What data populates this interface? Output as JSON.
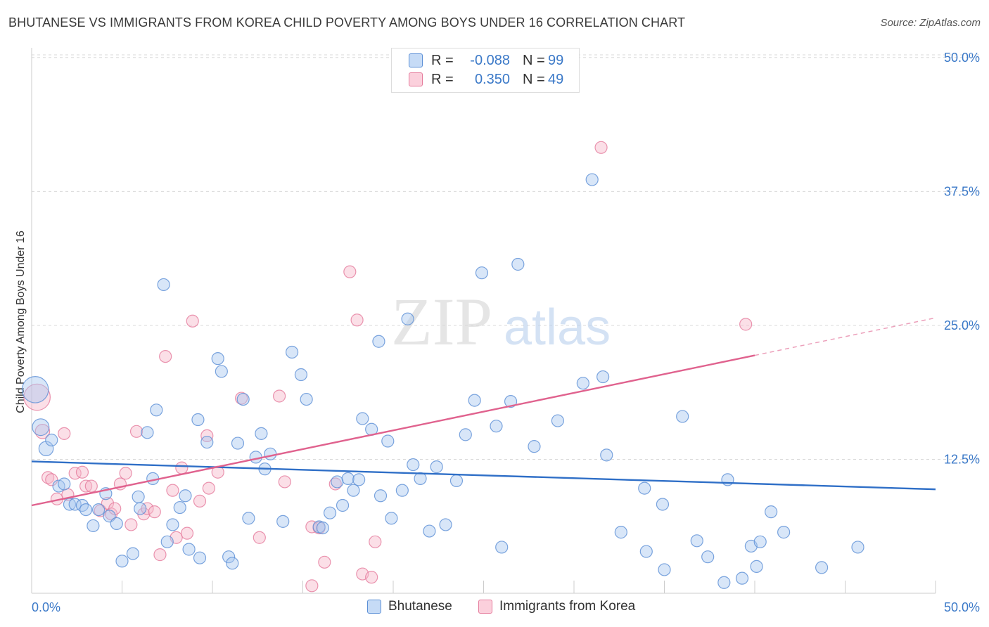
{
  "title": "BHUTANESE VS IMMIGRANTS FROM KOREA CHILD POVERTY AMONG BOYS UNDER 16 CORRELATION CHART",
  "source": "Source: ZipAtlas.com",
  "watermark": {
    "zip": "ZIP",
    "atlas": "atlas"
  },
  "colors": {
    "blue_fill": "#a9c8f0",
    "blue_stroke": "#5b8fd6",
    "blue_line": "#2f6fc7",
    "pink_fill": "#f6b8ca",
    "pink_stroke": "#e57b9c",
    "pink_line": "#e0628e",
    "axis_text": "#3b79c8",
    "grid": "#d9d9d9"
  },
  "legend_top": [
    {
      "swatch": "blue",
      "r_label": "R =",
      "r_value": "-0.088",
      "n_label": "N =",
      "n_value": "99"
    },
    {
      "swatch": "pink",
      "r_label": "R =",
      "r_value": "0.350",
      "n_label": "N =",
      "n_value": "49"
    }
  ],
  "legend_bottom": [
    {
      "swatch": "blue",
      "label": "Bhutanese"
    },
    {
      "swatch": "pink",
      "label": "Immigrants from Korea"
    }
  ],
  "chart_data": {
    "type": "scatter",
    "title": "BHUTANESE VS IMMIGRANTS FROM KOREA CHILD POVERTY AMONG BOYS UNDER 16 CORRELATION CHART",
    "xlabel": "",
    "ylabel": "Child Poverty Among Boys Under 16",
    "xlim": [
      0,
      50
    ],
    "ylim": [
      0,
      51
    ],
    "x_tick_labels": [
      {
        "value": 0,
        "label": "0.0%"
      },
      {
        "value": 50,
        "label": "50.0%"
      }
    ],
    "y_tick_labels": [
      {
        "value": 12.5,
        "label": "12.5%"
      },
      {
        "value": 25.0,
        "label": "25.0%"
      },
      {
        "value": 37.5,
        "label": "37.5%"
      },
      {
        "value": 50.0,
        "label": "50.0%"
      }
    ],
    "x_minor_ticks": [
      5,
      10,
      15,
      20,
      25,
      30,
      35,
      40,
      45,
      50
    ],
    "grid": true,
    "legend_position": "top-center",
    "series": [
      {
        "name": "Bhutanese",
        "color": "blue",
        "trend": {
          "x": [
            0,
            50
          ],
          "y": [
            12.3,
            9.7
          ]
        },
        "points": [
          [
            0.2,
            19.0,
            2.2
          ],
          [
            0.5,
            15.5,
            1.4
          ],
          [
            0.8,
            13.5,
            1.2
          ],
          [
            1.1,
            14.3,
            1.0
          ],
          [
            1.5,
            10.0,
            1.0
          ],
          [
            1.8,
            10.2,
            1.0
          ],
          [
            2.1,
            8.3,
            1.0
          ],
          [
            2.4,
            8.3,
            1.0
          ],
          [
            2.8,
            8.2,
            1.0
          ],
          [
            3.0,
            7.8,
            1.0
          ],
          [
            3.4,
            6.3,
            1.0
          ],
          [
            3.7,
            7.8,
            1.0
          ],
          [
            4.1,
            9.3,
            1.0
          ],
          [
            4.3,
            7.2,
            1.0
          ],
          [
            4.7,
            6.5,
            1.0
          ],
          [
            5.0,
            3.0,
            1.0
          ],
          [
            5.6,
            3.7,
            1.0
          ],
          [
            5.9,
            9.0,
            1.0
          ],
          [
            6.0,
            7.9,
            1.0
          ],
          [
            6.4,
            15.0,
            1.0
          ],
          [
            6.7,
            10.7,
            1.0
          ],
          [
            6.9,
            17.1,
            1.0
          ],
          [
            7.3,
            28.8,
            1.0
          ],
          [
            7.5,
            4.8,
            1.0
          ],
          [
            7.8,
            6.4,
            1.0
          ],
          [
            8.2,
            8.0,
            1.0
          ],
          [
            8.5,
            9.1,
            1.0
          ],
          [
            8.7,
            4.1,
            1.0
          ],
          [
            9.2,
            16.2,
            1.0
          ],
          [
            9.3,
            3.3,
            1.0
          ],
          [
            9.7,
            14.1,
            1.0
          ],
          [
            10.3,
            21.9,
            1.0
          ],
          [
            10.5,
            20.7,
            1.0
          ],
          [
            10.9,
            3.4,
            1.0
          ],
          [
            11.1,
            2.8,
            1.0
          ],
          [
            11.4,
            14.0,
            1.0
          ],
          [
            11.7,
            18.1,
            1.0
          ],
          [
            12.0,
            7.0,
            1.0
          ],
          [
            12.4,
            12.7,
            1.0
          ],
          [
            12.7,
            14.9,
            1.0
          ],
          [
            12.9,
            11.6,
            1.0
          ],
          [
            13.2,
            13.0,
            1.0
          ],
          [
            13.9,
            6.7,
            1.0
          ],
          [
            14.4,
            22.5,
            1.0
          ],
          [
            14.9,
            20.4,
            1.0
          ],
          [
            15.2,
            18.1,
            1.0
          ],
          [
            15.9,
            6.2,
            1.0
          ],
          [
            16.1,
            6.1,
            1.0
          ],
          [
            16.5,
            7.5,
            1.0
          ],
          [
            16.9,
            10.4,
            1.0
          ],
          [
            17.2,
            8.2,
            1.0
          ],
          [
            17.5,
            10.7,
            1.0
          ],
          [
            17.8,
            9.6,
            1.0
          ],
          [
            18.1,
            10.6,
            1.0
          ],
          [
            18.3,
            16.3,
            1.0
          ],
          [
            18.8,
            15.3,
            1.0
          ],
          [
            19.2,
            23.5,
            1.0
          ],
          [
            19.3,
            9.1,
            1.0
          ],
          [
            19.7,
            14.2,
            1.0
          ],
          [
            19.9,
            7.0,
            1.0
          ],
          [
            20.5,
            9.6,
            1.0
          ],
          [
            20.8,
            25.6,
            1.0
          ],
          [
            21.1,
            12.0,
            1.0
          ],
          [
            21.5,
            10.7,
            1.0
          ],
          [
            22.0,
            5.8,
            1.0
          ],
          [
            22.4,
            11.8,
            1.0
          ],
          [
            22.9,
            6.4,
            1.0
          ],
          [
            23.5,
            10.5,
            1.0
          ],
          [
            24.0,
            14.8,
            1.0
          ],
          [
            24.5,
            18.0,
            1.0
          ],
          [
            24.9,
            29.9,
            1.0
          ],
          [
            25.7,
            15.6,
            1.0
          ],
          [
            26.0,
            4.3,
            1.0
          ],
          [
            26.5,
            17.9,
            1.0
          ],
          [
            26.9,
            30.7,
            1.0
          ],
          [
            27.8,
            13.7,
            1.0
          ],
          [
            29.1,
            16.1,
            1.0
          ],
          [
            30.5,
            19.6,
            1.0
          ],
          [
            31.0,
            38.6,
            1.0
          ],
          [
            31.6,
            20.2,
            1.0
          ],
          [
            31.8,
            12.9,
            1.0
          ],
          [
            32.6,
            5.7,
            1.0
          ],
          [
            33.9,
            9.8,
            1.0
          ],
          [
            34.0,
            3.9,
            1.0
          ],
          [
            34.9,
            8.3,
            1.0
          ],
          [
            35.0,
            2.2,
            1.0
          ],
          [
            36.0,
            16.5,
            1.0
          ],
          [
            36.8,
            4.9,
            1.0
          ],
          [
            37.4,
            3.4,
            1.0
          ],
          [
            38.3,
            1.0,
            1.0
          ],
          [
            38.5,
            10.6,
            1.0
          ],
          [
            39.3,
            1.4,
            1.0
          ],
          [
            39.8,
            4.4,
            1.0
          ],
          [
            40.1,
            2.5,
            1.0
          ],
          [
            40.3,
            4.8,
            1.0
          ],
          [
            40.9,
            7.6,
            1.0
          ],
          [
            41.6,
            5.7,
            1.0
          ],
          [
            43.7,
            2.4,
            1.0
          ],
          [
            45.7,
            4.3,
            1.0
          ]
        ]
      },
      {
        "name": "Immigrants from Korea",
        "color": "pink",
        "trend": {
          "x": [
            0,
            40
          ],
          "y": [
            8.2,
            22.2
          ],
          "dashed_x": [
            40,
            50
          ],
          "dashed_y": [
            22.2,
            25.7
          ]
        },
        "points": [
          [
            0.3,
            18.3,
            2.2
          ],
          [
            0.6,
            15.1,
            1.2
          ],
          [
            0.9,
            10.8,
            1.0
          ],
          [
            1.1,
            10.6,
            1.0
          ],
          [
            1.4,
            8.8,
            1.0
          ],
          [
            1.8,
            14.9,
            1.0
          ],
          [
            2.0,
            9.2,
            1.0
          ],
          [
            2.4,
            11.2,
            1.0
          ],
          [
            2.8,
            11.3,
            1.0
          ],
          [
            3.0,
            10.0,
            1.0
          ],
          [
            3.3,
            10.0,
            1.0
          ],
          [
            3.8,
            7.7,
            1.0
          ],
          [
            4.2,
            8.4,
            1.0
          ],
          [
            4.4,
            7.4,
            1.0
          ],
          [
            4.6,
            7.9,
            1.0
          ],
          [
            4.9,
            10.2,
            1.0
          ],
          [
            5.2,
            11.2,
            1.0
          ],
          [
            5.5,
            6.4,
            1.0
          ],
          [
            5.8,
            15.1,
            1.0
          ],
          [
            6.2,
            7.4,
            1.0
          ],
          [
            6.4,
            7.9,
            1.0
          ],
          [
            6.8,
            7.6,
            1.0
          ],
          [
            7.1,
            3.6,
            1.0
          ],
          [
            7.4,
            22.1,
            1.0
          ],
          [
            7.8,
            9.6,
            1.0
          ],
          [
            8.0,
            5.2,
            1.0
          ],
          [
            8.3,
            11.7,
            1.0
          ],
          [
            8.6,
            5.6,
            1.0
          ],
          [
            8.9,
            25.4,
            1.0
          ],
          [
            9.3,
            8.6,
            1.0
          ],
          [
            9.7,
            14.7,
            1.0
          ],
          [
            9.8,
            9.8,
            1.0
          ],
          [
            10.3,
            11.3,
            1.0
          ],
          [
            11.6,
            18.2,
            1.0
          ],
          [
            12.6,
            5.2,
            1.0
          ],
          [
            13.7,
            18.4,
            1.0
          ],
          [
            14.0,
            10.4,
            1.0
          ],
          [
            15.5,
            6.2,
            1.0
          ],
          [
            15.5,
            0.7,
            1.0
          ],
          [
            15.9,
            6.1,
            1.0
          ],
          [
            16.2,
            2.9,
            1.0
          ],
          [
            16.8,
            10.2,
            1.0
          ],
          [
            17.6,
            30.0,
            1.0
          ],
          [
            18.0,
            25.5,
            1.0
          ],
          [
            18.3,
            1.8,
            1.0
          ],
          [
            18.8,
            1.5,
            1.0
          ],
          [
            19.0,
            4.8,
            1.0
          ],
          [
            31.5,
            41.6,
            1.0
          ],
          [
            39.5,
            25.1,
            1.0
          ]
        ]
      }
    ]
  }
}
